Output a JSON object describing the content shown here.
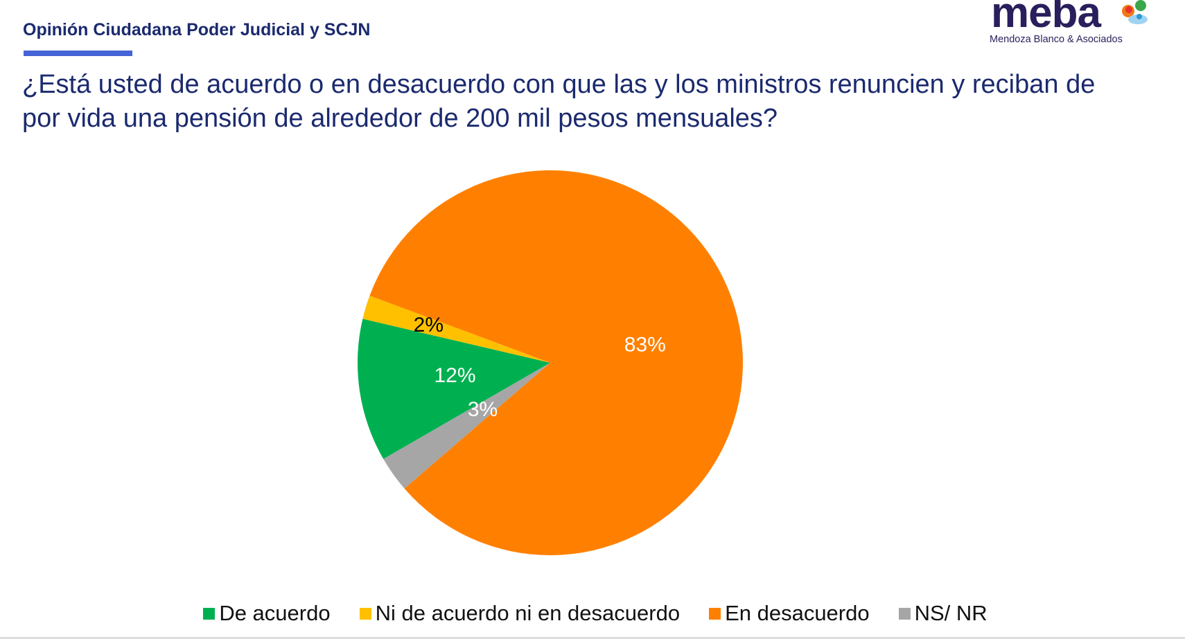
{
  "header": {
    "title": "Opinión Ciudadana Poder Judicial y SCJN"
  },
  "logo": {
    "word": "meba",
    "subtitle": "Mendoza Blanco & Asociados"
  },
  "chart_data": {
    "type": "pie",
    "title": "¿Está usted de acuerdo o en desacuerdo con que las y los ministros renuncien y reciban de por vida una pensión de alrededor de 200 mil pesos mensuales?",
    "categories": [
      "De acuerdo",
      "Ni de acuerdo ni en desacuerdo",
      "En desacuerdo",
      "NS/ NR"
    ],
    "values": [
      12,
      2,
      83,
      3
    ],
    "labels": [
      "12%",
      "2%",
      "83%",
      "3%"
    ],
    "colors": [
      "#00b050",
      "#ffc000",
      "#ff8000",
      "#a6a6a6"
    ],
    "label_colors": [
      "#ffffff",
      "#000000",
      "#ffffff",
      "#ffffff"
    ],
    "legend_position": "bottom"
  }
}
